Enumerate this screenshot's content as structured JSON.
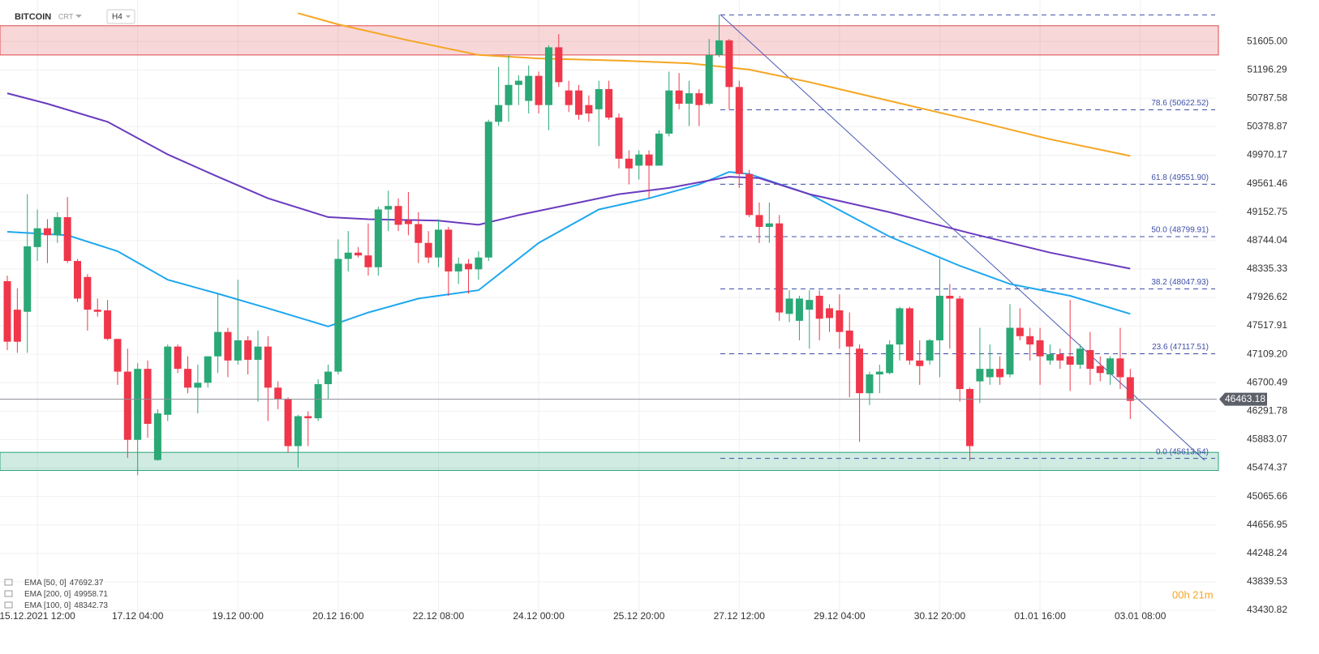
{
  "chart_data": {
    "type": "candlestick",
    "title": "BITCOIN",
    "subtitle": "CRT",
    "timeframe": "H4",
    "timer": "00h 21m",
    "up_color": "#2aa876",
    "down_color": "#f0364a",
    "grid": true,
    "ylim": [
      43350,
      52200
    ],
    "yticks": [
      {
        "value": 51605,
        "label": "51605.00"
      },
      51196.29,
      50787.58,
      50378.87,
      49970.17,
      49561.46,
      49152.75,
      48744.04,
      48335.33,
      47926.62,
      47517.91,
      {
        "value": 47109.2,
        "label": "47109.20"
      },
      46700.49,
      46291.78,
      45883.07,
      45474.37,
      45065.66,
      44656.95,
      44248.24,
      43839.53,
      43430.82
    ],
    "categories": [
      null,
      null,
      null,
      "15.12.2021 12:00",
      null,
      null,
      null,
      null,
      null,
      null,
      null,
      null,
      null,
      "17.12 04:00",
      null,
      null,
      null,
      null,
      null,
      null,
      null,
      null,
      null,
      "19.12 00:00",
      null,
      null,
      null,
      null,
      null,
      null,
      null,
      null,
      null,
      "20.12 16:00",
      null,
      null,
      null,
      null,
      null,
      null,
      null,
      null,
      null,
      "22.12 08:00",
      null,
      null,
      null,
      null,
      null,
      null,
      null,
      null,
      null,
      "24.12 00:00",
      null,
      null,
      null,
      null,
      null,
      null,
      null,
      null,
      null,
      "25.12 20:00",
      null,
      null,
      null,
      null,
      null,
      null,
      null,
      null,
      null,
      "27.12 12:00",
      null,
      null,
      null,
      null,
      null,
      null,
      null,
      null,
      null,
      "29.12 04:00",
      null,
      null,
      null,
      null,
      null,
      null,
      null,
      null,
      null,
      "30.12 20:00",
      null,
      null,
      null,
      null,
      null,
      null,
      null,
      null,
      null,
      "01.01 16:00",
      null,
      null,
      null,
      null,
      null,
      null,
      null,
      null,
      null,
      "03.01 08:00"
    ],
    "open": [
      48160,
      47750,
      47720,
      48650,
      48920,
      48820,
      49080,
      48450,
      48220,
      47750,
      47740,
      47330,
      46860,
      45880,
      46900,
      45590,
      46240,
      47220,
      46900,
      46630,
      46700,
      47080,
      47430,
      47020,
      47310,
      47030,
      47220,
      46630,
      46470,
      45790,
      46220,
      46190,
      46680,
      46860,
      48480,
      48570,
      48530,
      48360,
      49190,
      49240,
      49030,
      48980,
      48710,
      48500,
      48900,
      48300,
      48410,
      48330,
      48500,
      50450,
      50690,
      50980,
      50750,
      51110,
      50690,
      51520,
      50900,
      50900,
      50690,
      50630,
      50920,
      50510,
      49920,
      49820,
      49980,
      49820,
      50280,
      50900,
      50710,
      50860,
      50710,
      51410,
      51620,
      50950,
      49700,
      49110,
      48940,
      48990,
      47690,
      47590,
      47750,
      47950,
      47770,
      47740,
      47450,
      47190,
      46550,
      46820,
      46840,
      47250,
      47770,
      47020,
      47020,
      47310,
      47950,
      47910,
      46610,
      46720,
      46780,
      46900,
      46820,
      47490,
      47370,
      47310,
      47020,
      47110,
      47080,
      46960,
      47170,
      46940,
      46820,
      47050,
      46780,
      null
    ],
    "high": [
      48240,
      48060,
      49410,
      49190,
      49050,
      49150,
      49370,
      48480,
      48260,
      47910,
      47890,
      47330,
      47190,
      46980,
      47020,
      46320,
      47250,
      47250,
      47080,
      46960,
      47080,
      47980,
      47490,
      48180,
      47370,
      47450,
      47370,
      46720,
      46490,
      46240,
      46290,
      46750,
      46960,
      48760,
      48880,
      48650,
      48990,
      49230,
      49460,
      49350,
      49440,
      49150,
      48880,
      49050,
      48940,
      48500,
      48480,
      48590,
      50480,
      51240,
      51410,
      51120,
      51260,
      51170,
      51550,
      51710,
      51040,
      50980,
      50830,
      51040,
      51040,
      50570,
      50040,
      50040,
      50040,
      50330,
      51170,
      51150,
      51040,
      50920,
      51640,
      51990,
      51640,
      51040,
      49760,
      49290,
      49290,
      49110,
      48030,
      47950,
      48030,
      48030,
      47830,
      47970,
      47710,
      47250,
      46860,
      46960,
      47310,
      47790,
      47790,
      47310,
      47330,
      48480,
      48120,
      47950,
      46630,
      47490,
      47250,
      47080,
      47830,
      47770,
      47490,
      47490,
      47250,
      47190,
      47890,
      47250,
      47430,
      47080,
      47080,
      47490,
      46900,
      null
    ],
    "low": [
      47170,
      47130,
      47130,
      48450,
      48420,
      48710,
      48420,
      47860,
      47450,
      47650,
      47310,
      46670,
      45620,
      45370,
      45910,
      45580,
      46150,
      46840,
      46550,
      46260,
      46630,
      46840,
      46780,
      46960,
      46820,
      46430,
      46150,
      46320,
      45700,
      45480,
      45790,
      46150,
      46470,
      46820,
      48300,
      48500,
      48240,
      48240,
      48880,
      48880,
      48820,
      48420,
      48420,
      48360,
      47950,
      48120,
      47980,
      48180,
      48450,
      50390,
      50450,
      50690,
      50570,
      50570,
      50330,
      50950,
      50590,
      50480,
      50450,
      50100,
      50480,
      49780,
      49550,
      49620,
      49350,
      49820,
      50240,
      50630,
      50390,
      50390,
      50690,
      51380,
      50630,
      49500,
      49080,
      48710,
      48710,
      47590,
      47570,
      47310,
      47190,
      47310,
      47430,
      47190,
      46490,
      45850,
      46380,
      46550,
      46820,
      47020,
      46960,
      46670,
      46960,
      46780,
      47190,
      46430,
      45580,
      46410,
      46670,
      46670,
      46780,
      47310,
      47020,
      46670,
      46960,
      46900,
      46580,
      46900,
      46670,
      46720,
      46670,
      46610,
      46180,
      null
    ],
    "close": [
      47290,
      47290,
      48660,
      48920,
      48820,
      49080,
      48450,
      47910,
      47750,
      47720,
      47330,
      46860,
      45880,
      46900,
      46110,
      46260,
      47220,
      46900,
      46630,
      46700,
      47080,
      47430,
      47020,
      47310,
      47030,
      47220,
      46630,
      46470,
      45790,
      46220,
      46190,
      46680,
      46860,
      48480,
      48570,
      48530,
      48360,
      49190,
      49240,
      48970,
      48980,
      48710,
      48500,
      48900,
      48300,
      48410,
      48330,
      48500,
      50450,
      50690,
      50980,
      51040,
      51110,
      50690,
      51520,
      51020,
      50690,
      50550,
      50570,
      50920,
      50510,
      49920,
      49780,
      49980,
      49820,
      50280,
      50900,
      50710,
      50860,
      50690,
      51410,
      51620,
      50950,
      49700,
      49110,
      48940,
      48990,
      47710,
      47910,
      47910,
      47890,
      47620,
      47630,
      47430,
      47220,
      46550,
      46820,
      46860,
      47250,
      47770,
      47020,
      46940,
      47310,
      47950,
      47910,
      46610,
      45790,
      46900,
      46900,
      46780,
      47490,
      47370,
      47250,
      47080,
      47110,
      47020,
      46960,
      47190,
      46900,
      46840,
      47050,
      46780,
      46440,
      null
    ],
    "series": [
      {
        "name": "EMA [50, 0]",
        "last_value": 47692.37,
        "color": "#1ea7f0",
        "x": [
          0,
          6,
          11,
          16,
          21,
          26,
          32,
          36,
          41,
          47,
          53,
          59,
          64,
          69,
          72,
          74,
          80,
          88,
          95,
          100,
          106,
          112
        ],
        "values": [
          48870,
          48820,
          48590,
          48180,
          47980,
          47770,
          47510,
          47710,
          47910,
          48030,
          48710,
          49190,
          49350,
          49550,
          49730,
          49700,
          49410,
          48800,
          48380,
          48120,
          47950,
          47690
        ]
      },
      {
        "name": "EMA [200, 0]",
        "last_value": 49958.71,
        "color": "#f5a623",
        "x": [
          29,
          33,
          40,
          47,
          53,
          61,
          68,
          74,
          80,
          88,
          96,
          104,
          112
        ],
        "values": [
          52010,
          51850,
          51620,
          51410,
          51360,
          51330,
          51290,
          51200,
          51020,
          50750,
          50480,
          50200,
          49960
        ]
      },
      {
        "name": "EMA [100, 0]",
        "last_value": 48342.73,
        "color": "#6a3bbf",
        "x": [
          0,
          4,
          10,
          16,
          21,
          26,
          32,
          36,
          43,
          47,
          51,
          56,
          61,
          66,
          72,
          75,
          80,
          88,
          96,
          104,
          112
        ],
        "values": [
          50860,
          50710,
          50450,
          49980,
          49660,
          49350,
          49080,
          49050,
          49030,
          48970,
          49110,
          49260,
          49410,
          49500,
          49660,
          49640,
          49410,
          49150,
          48850,
          48570,
          48340
        ]
      }
    ],
    "last_price": 46463.18,
    "fib_levels": [
      51986.3,
      {
        "value": 50622.52,
        "label": "78.6 (50622.52)"
      },
      {
        "value": 49551.9,
        "label": "61.8 (49551.90)"
      },
      {
        "value": 48799.91,
        "label": "50.0 (48799.91)"
      },
      {
        "value": 48047.93,
        "label": "38.2 (48047.93)"
      },
      {
        "value": 47117.51,
        "label": "23.6 (47117.51)"
      },
      {
        "value": 45613.54,
        "label": "0.0 (45613.54)"
      }
    ],
    "zones": [
      {
        "from": 51410,
        "to": 51830,
        "color": "#e0484d"
      },
      {
        "from": 45440,
        "to": 45700,
        "color": "#2aa57a"
      }
    ]
  }
}
